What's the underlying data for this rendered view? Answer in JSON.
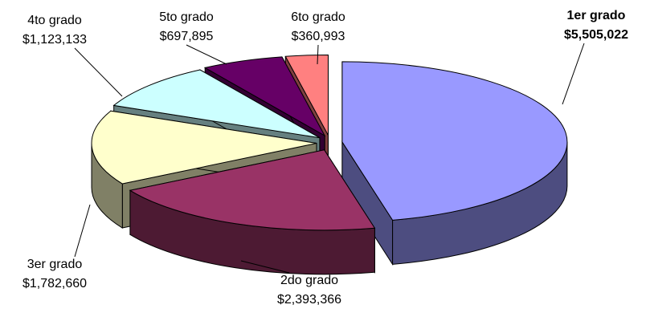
{
  "chart_data": {
    "type": "pie3d",
    "categories": [
      "1er grado",
      "2do grado",
      "3er grado",
      "4to grado",
      "5to grado",
      "6to grado"
    ],
    "values": [
      5505022,
      2393366,
      1782660,
      1123133,
      697895,
      360993
    ],
    "value_labels": [
      "$5,505,022",
      "$2,393,366",
      "$1,782,660",
      "$1,123,133",
      "$697,895",
      "$360,993"
    ],
    "colors": [
      "#9999ff",
      "#993366",
      "#ffffcc",
      "#ccffff",
      "#660066",
      "#ff8080"
    ]
  }
}
